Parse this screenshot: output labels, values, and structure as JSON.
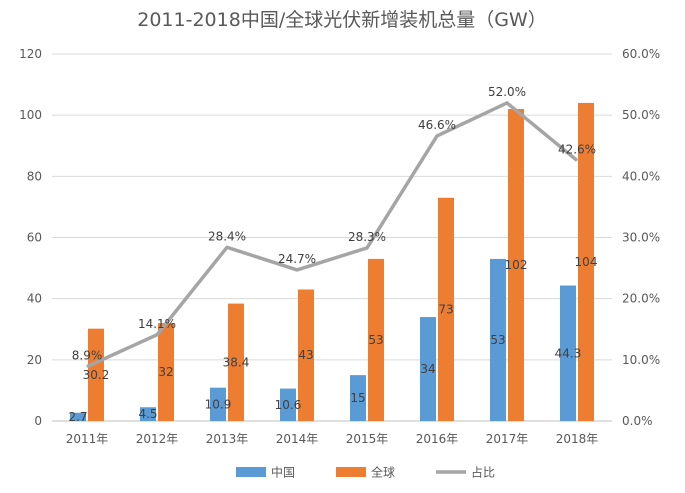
{
  "chart_data": {
    "type": "bar",
    "title": "2011-2018中国/全球光伏新增装机总量（GW）",
    "categories": [
      "2011年",
      "2012年",
      "2013年",
      "2014年",
      "2015年",
      "2016年",
      "2017年",
      "2018年"
    ],
    "series": [
      {
        "name": "中国",
        "kind": "bar",
        "axis": "left",
        "color": "#5b9bd5",
        "values": [
          2.7,
          4.5,
          10.9,
          10.6,
          15,
          34,
          53,
          44.3
        ],
        "labels": [
          "2.7",
          "4.5",
          "10.9",
          "10.6",
          "15",
          "34",
          "53",
          "44.3"
        ]
      },
      {
        "name": "全球",
        "kind": "bar",
        "axis": "left",
        "color": "#ed7d31",
        "values": [
          30.2,
          32,
          38.4,
          43,
          53,
          73,
          102,
          104
        ],
        "labels": [
          "30.2",
          "32",
          "38.4",
          "43",
          "53",
          "73",
          "102",
          "104"
        ]
      },
      {
        "name": "占比",
        "kind": "line",
        "axis": "right",
        "color": "#a5a5a5",
        "values": [
          8.9,
          14.1,
          28.4,
          24.7,
          28.3,
          46.6,
          52.0,
          42.6
        ],
        "labels": [
          "8.9%",
          "14.1%",
          "28.4%",
          "24.7%",
          "28.3%",
          "46.6%",
          "52.0%",
          "42.6%"
        ]
      }
    ],
    "ylim_left": [
      0,
      120
    ],
    "yticks_left": [
      "0",
      "20",
      "40",
      "60",
      "80",
      "100",
      "120"
    ],
    "ylim_right": [
      0,
      60
    ],
    "yticks_right": [
      "0.0%",
      "10.0%",
      "20.0%",
      "30.0%",
      "40.0%",
      "50.0%",
      "60.0%"
    ],
    "grid": true,
    "legend_position": "bottom"
  }
}
